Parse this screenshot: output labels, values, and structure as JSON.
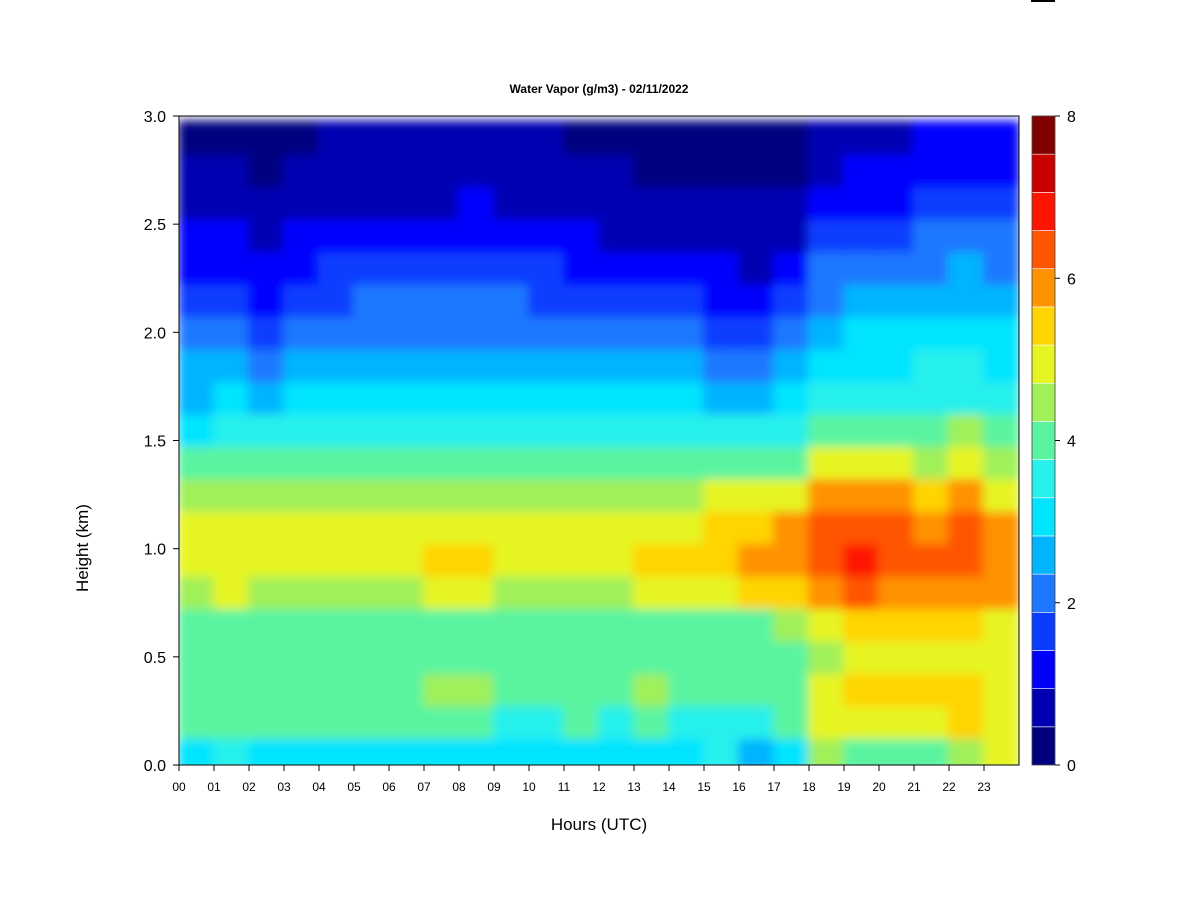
{
  "chart_data": {
    "type": "heatmap",
    "title": "Water Vapor (g/m3) - 02/11/2022",
    "xlabel": "Hours (UTC)",
    "ylabel": "Height (km)",
    "xlim": [
      0,
      24
    ],
    "ylim": [
      0.0,
      3.0
    ],
    "x_ticks": [
      "00",
      "01",
      "02",
      "03",
      "04",
      "05",
      "06",
      "07",
      "08",
      "09",
      "10",
      "11",
      "12",
      "13",
      "14",
      "15",
      "16",
      "17",
      "18",
      "19",
      "20",
      "21",
      "22",
      "23"
    ],
    "y_ticks": [
      "0.0",
      "0.5",
      "1.0",
      "1.5",
      "2.0",
      "2.5",
      "3.0"
    ],
    "colorbar": {
      "min": 0,
      "max": 8,
      "step": 0.5,
      "ticks": [
        "0",
        "2",
        "4",
        "6",
        "8"
      ],
      "colors": [
        "#00007f",
        "#0000b2",
        "#0000ff",
        "#0a3cff",
        "#1e78ff",
        "#00b4ff",
        "#00e4ff",
        "#28f0ec",
        "#5af4a0",
        "#a0f05a",
        "#e6f522",
        "#ffd400",
        "#ff9200",
        "#ff5400",
        "#ff1400",
        "#c80000",
        "#800000"
      ]
    },
    "heights_km": [
      0.05,
      0.2,
      0.35,
      0.5,
      0.65,
      0.8,
      0.95,
      1.1,
      1.25,
      1.4,
      1.55,
      1.7,
      1.85,
      2.0,
      2.15,
      2.3,
      2.45,
      2.6,
      2.75,
      2.9
    ],
    "hours_utc": [
      0.5,
      1.5,
      2.5,
      3.5,
      4.5,
      5.5,
      6.5,
      7.5,
      8.5,
      9.5,
      10.5,
      11.5,
      12.5,
      13.5,
      14.5,
      15.5,
      16.5,
      17.5,
      18.5,
      19.5,
      20.5,
      21.5,
      22.5,
      23.5
    ],
    "values_g_m3": [
      [
        3.3,
        3.5,
        3.3,
        3.4,
        3.3,
        3.2,
        3.3,
        3.4,
        3.4,
        3.3,
        3.3,
        3.3,
        3.4,
        3.4,
        3.3,
        3.5,
        2.8,
        3.2,
        4.6,
        4.3,
        4.3,
        4.4,
        4.8,
        5.0
      ],
      [
        4.0,
        4.0,
        4.0,
        4.1,
        4.0,
        4.0,
        4.0,
        4.0,
        4.1,
        3.8,
        3.9,
        4.0,
        3.9,
        4.0,
        3.9,
        3.9,
        3.8,
        4.0,
        5.0,
        5.0,
        5.0,
        5.2,
        5.5,
        5.3
      ],
      [
        4.3,
        4.4,
        4.3,
        4.4,
        4.4,
        4.2,
        4.4,
        4.6,
        4.6,
        4.4,
        4.4,
        4.4,
        4.4,
        4.6,
        4.2,
        4.2,
        4.2,
        4.3,
        5.4,
        5.6,
        5.6,
        5.8,
        5.8,
        5.4
      ],
      [
        4.1,
        4.1,
        4.1,
        4.1,
        4.1,
        4.0,
        4.1,
        4.1,
        4.1,
        4.0,
        4.0,
        4.0,
        4.0,
        4.1,
        4.1,
        4.1,
        4.0,
        4.1,
        4.9,
        5.0,
        5.0,
        5.1,
        5.0,
        5.0
      ],
      [
        4.2,
        4.3,
        4.2,
        4.3,
        4.3,
        4.2,
        4.3,
        4.3,
        4.3,
        4.2,
        4.2,
        4.2,
        4.2,
        4.3,
        4.3,
        4.4,
        4.4,
        4.5,
        5.4,
        5.6,
        5.5,
        5.6,
        5.5,
        5.3
      ],
      [
        4.9,
        5.0,
        4.8,
        4.9,
        4.9,
        4.8,
        4.9,
        5.1,
        5.2,
        4.8,
        4.8,
        4.8,
        4.9,
        5.0,
        5.3,
        5.4,
        5.6,
        5.8,
        6.3,
        6.5,
        6.3,
        6.4,
        6.3,
        6.0
      ],
      [
        5.2,
        5.3,
        5.3,
        5.4,
        5.4,
        5.3,
        5.4,
        5.6,
        5.6,
        5.2,
        5.2,
        5.3,
        5.3,
        5.5,
        5.6,
        5.8,
        6.0,
        6.2,
        6.8,
        7.2,
        6.8,
        6.7,
        6.8,
        6.3
      ],
      [
        5.1,
        5.2,
        5.1,
        5.3,
        5.2,
        5.1,
        5.3,
        5.4,
        5.4,
        5.1,
        5.1,
        5.1,
        5.1,
        5.2,
        5.4,
        5.7,
        5.8,
        6.0,
        6.6,
        6.8,
        6.5,
        6.4,
        6.6,
        6.0
      ],
      [
        4.6,
        4.8,
        4.7,
        4.8,
        4.8,
        4.8,
        4.8,
        4.8,
        4.9,
        4.7,
        4.7,
        4.7,
        4.7,
        4.8,
        4.9,
        5.1,
        5.2,
        5.4,
        6.0,
        6.3,
        6.0,
        5.8,
        6.0,
        5.4
      ],
      [
        4.0,
        4.1,
        4.1,
        4.1,
        4.0,
        4.0,
        4.1,
        4.1,
        4.1,
        4.0,
        4.0,
        4.0,
        4.0,
        4.0,
        4.1,
        4.2,
        4.2,
        4.4,
        5.0,
        5.1,
        5.0,
        4.9,
        5.0,
        4.8
      ],
      [
        3.4,
        3.6,
        3.5,
        3.5,
        3.5,
        3.6,
        3.6,
        3.5,
        3.6,
        3.5,
        3.5,
        3.5,
        3.5,
        3.6,
        3.6,
        3.6,
        3.5,
        3.7,
        4.2,
        4.3,
        4.3,
        4.3,
        4.5,
        4.2
      ],
      [
        2.9,
        3.0,
        2.8,
        3.0,
        3.0,
        3.0,
        3.0,
        3.0,
        3.0,
        3.0,
        3.0,
        3.0,
        3.0,
        3.0,
        3.0,
        2.9,
        2.8,
        3.1,
        3.7,
        3.8,
        3.8,
        3.9,
        3.9,
        3.7
      ],
      [
        2.5,
        2.6,
        2.0,
        2.6,
        2.6,
        2.7,
        2.7,
        2.7,
        2.7,
        2.7,
        2.7,
        2.6,
        2.5,
        2.6,
        2.5,
        2.3,
        2.0,
        2.6,
        3.3,
        3.4,
        3.4,
        3.5,
        3.5,
        3.4
      ],
      [
        2.1,
        2.3,
        1.6,
        2.2,
        2.3,
        2.4,
        2.4,
        2.4,
        2.4,
        2.4,
        2.4,
        2.3,
        2.1,
        2.2,
        2.0,
        1.7,
        1.5,
        2.1,
        2.9,
        3.0,
        3.0,
        3.1,
        3.2,
        3.1
      ],
      [
        1.7,
        1.8,
        1.4,
        1.7,
        1.9,
        2.0,
        2.0,
        2.0,
        2.0,
        2.0,
        1.9,
        1.8,
        1.6,
        1.6,
        1.5,
        1.3,
        1.2,
        1.6,
        2.4,
        2.6,
        2.7,
        2.8,
        2.9,
        2.7
      ],
      [
        1.3,
        1.4,
        1.1,
        1.4,
        1.5,
        1.6,
        1.6,
        1.6,
        1.6,
        1.6,
        1.5,
        1.4,
        1.3,
        1.2,
        1.1,
        1.0,
        0.9,
        1.2,
        2.0,
        2.2,
        2.3,
        2.4,
        2.5,
        2.4
      ],
      [
        1.0,
        1.0,
        0.8,
        1.1,
        1.1,
        1.2,
        1.2,
        1.2,
        1.3,
        1.2,
        1.1,
        1.0,
        0.9,
        0.9,
        0.8,
        0.7,
        0.7,
        0.9,
        1.5,
        1.7,
        1.9,
        2.0,
        2.1,
        2.0
      ],
      [
        0.8,
        0.8,
        0.6,
        0.8,
        0.9,
        0.9,
        0.9,
        0.9,
        1.0,
        0.9,
        0.8,
        0.8,
        0.7,
        0.6,
        0.6,
        0.5,
        0.5,
        0.7,
        1.1,
        1.3,
        1.4,
        1.6,
        1.7,
        1.6
      ],
      [
        0.6,
        0.5,
        0.4,
        0.6,
        0.7,
        0.7,
        0.7,
        0.7,
        0.7,
        0.7,
        0.6,
        0.6,
        0.5,
        0.4,
        0.4,
        0.3,
        0.3,
        0.4,
        0.8,
        1.0,
        1.1,
        1.3,
        1.4,
        1.3
      ],
      [
        0.4,
        0.4,
        0.3,
        0.4,
        0.5,
        0.5,
        0.5,
        0.5,
        0.5,
        0.5,
        0.5,
        0.4,
        0.4,
        0.3,
        0.3,
        0.2,
        0.2,
        0.3,
        0.6,
        0.8,
        0.9,
        1.1,
        1.2,
        1.1
      ]
    ]
  }
}
